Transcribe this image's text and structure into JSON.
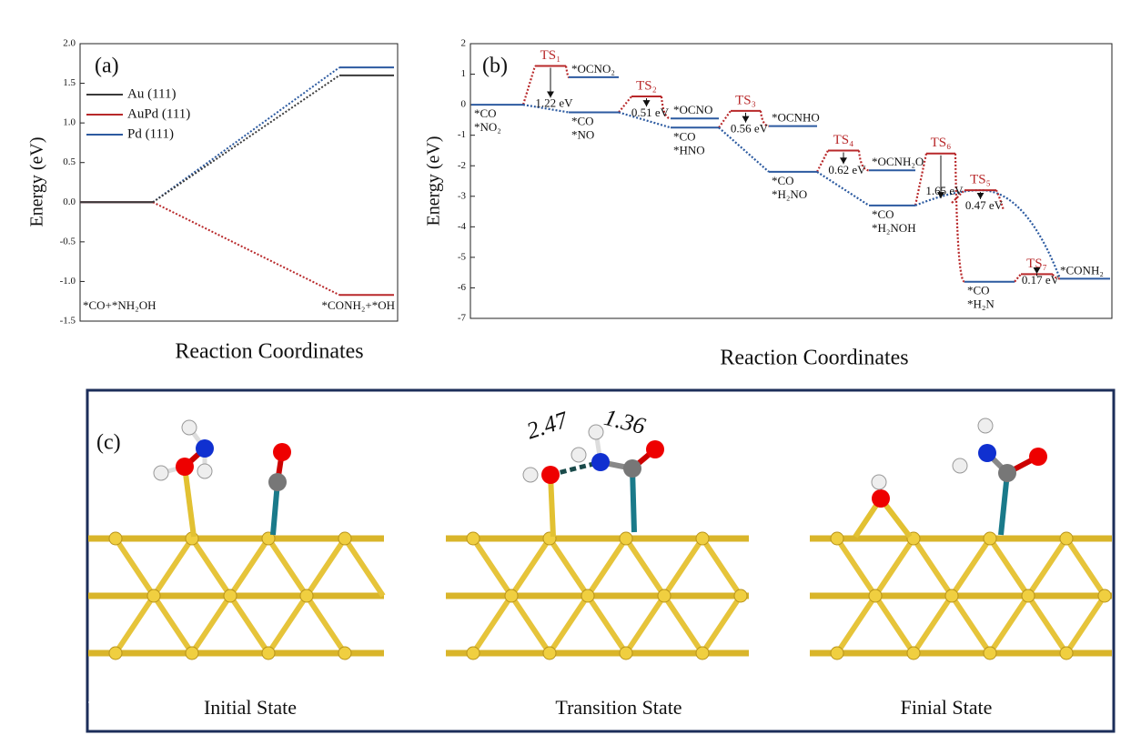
{
  "chart_data": [
    {
      "type": "level_diagram",
      "label": "(a)",
      "ylabel": "Energy (eV)",
      "xlabel": "Reaction Coordinates",
      "categories": [
        "*CO+*NH₂OH",
        "*CONH₂+*OH"
      ],
      "series": [
        {
          "name": "Au (111)",
          "color": "#3a3a3a",
          "values": [
            0,
            1.6
          ]
        },
        {
          "name": "AuPd (111)",
          "color": "#b8282a",
          "values": [
            0,
            -1.17
          ]
        },
        {
          "name": "Pd (111)",
          "color": "#2c5aa0",
          "values": [
            0,
            1.7
          ]
        }
      ],
      "ylim": [
        -1.5,
        2.0
      ],
      "yticks": [
        -1.5,
        {
          "value": -1.0,
          "label": "-1.0"
        },
        -0.5,
        {
          "value": 0.0,
          "label": "0.0"
        },
        0.5,
        {
          "value": 1.0,
          "label": "1.0"
        },
        1.5,
        {
          "value": 2.0,
          "label": "2.0"
        }
      ],
      "legend": "upper left"
    },
    {
      "type": "energy_profile",
      "label": "(b)",
      "ylabel": "Energy (eV)",
      "xlabel": "Reaction Coordinates",
      "intermediate_color": "#2c5aa0",
      "ts_color": "#b8282a",
      "intermediates": [
        {
          "label": [
            "*CO",
            "*NO₂"
          ],
          "value": 0
        },
        {
          "label": [
            "*OCNO₂"
          ],
          "value": 0.9
        },
        {
          "label": [
            "*CO",
            "*NO"
          ],
          "value": -0.25
        },
        {
          "label": [
            "*OCNO"
          ],
          "value": -0.45
        },
        {
          "label": [
            "*CO",
            "*HNO"
          ],
          "value": -0.75
        },
        {
          "label": [
            "*OCNHO"
          ],
          "value": -0.7
        },
        {
          "label": [
            "*CO",
            "*H₂NO"
          ],
          "value": -2.2
        },
        {
          "label": [
            "*OCNH₂O"
          ],
          "value": -2.15
        },
        {
          "label": [
            "*CO",
            "*H₂NOH"
          ],
          "value": -3.3
        },
        {
          "label": [
            "*CO",
            "*H₂N"
          ],
          "value": -5.8
        },
        {
          "label": [
            "*CONH₂"
          ],
          "value": -5.7
        }
      ],
      "transition_states": [
        {
          "label": "TS₁",
          "value": 1.27,
          "barrier": 1.22,
          "barrier_label": "1.22 eV"
        },
        {
          "label": "TS₂",
          "value": 0.27,
          "barrier": 0.51,
          "barrier_label": "0.51 eV"
        },
        {
          "label": "TS₃",
          "value": -0.2,
          "barrier": 0.56,
          "barrier_label": "0.56 eV"
        },
        {
          "label": "TS₄",
          "value": -1.5,
          "barrier": 0.62,
          "barrier_label": "0.62 eV"
        },
        {
          "label": "TS₆",
          "value": -1.6,
          "barrier": 1.65,
          "barrier_label": "1.65 eV"
        },
        {
          "label": "TS₅",
          "value": -2.8,
          "barrier": 0.47,
          "barrier_label": "0.47 eV"
        },
        {
          "label": "TS₇",
          "value": -5.55,
          "barrier": 0.17,
          "barrier_label": "0.17 eV"
        }
      ],
      "ylim": [
        -7,
        2
      ],
      "yticks": [
        -7,
        -6,
        -5,
        -4,
        -3,
        -2,
        -1,
        0,
        1,
        2
      ]
    }
  ],
  "panel_c": {
    "label": "(c)",
    "states": [
      "Initial State",
      "Transition State",
      "Finial State"
    ],
    "distances": [
      2.47,
      1.36
    ]
  }
}
